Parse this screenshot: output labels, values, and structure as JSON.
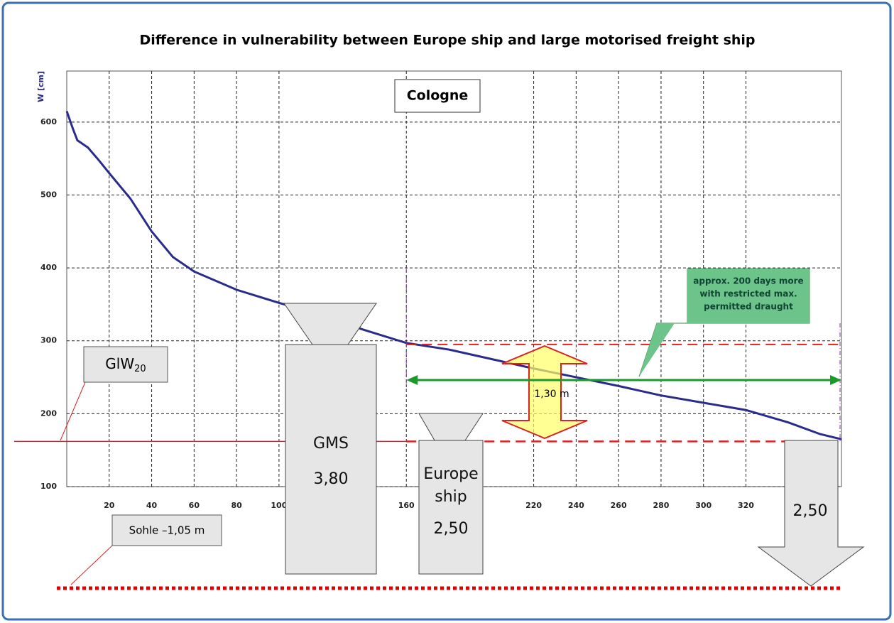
{
  "chart_data": {
    "type": "line",
    "title": "Difference in vulnerability between Europe ship and large motorised freight ship",
    "y_label": "W [cm]",
    "x": [
      0,
      3,
      5,
      10,
      15,
      20,
      30,
      40,
      50,
      60,
      80,
      100,
      120,
      140,
      160,
      180,
      200,
      220,
      240,
      260,
      280,
      300,
      320,
      340,
      355,
      365
    ],
    "series": [
      {
        "color": "#2b2b8c",
        "values": [
          615,
          590,
          575,
          565,
          548,
          530,
          495,
          450,
          415,
          395,
          370,
          352,
          335,
          315,
          297,
          288,
          275,
          262,
          250,
          238,
          225,
          215,
          205,
          188,
          172,
          165
        ]
      }
    ],
    "xlim": [
      0,
      365
    ],
    "ylim": [
      100,
      670
    ],
    "xticks": [
      20,
      40,
      60,
      80,
      100,
      160,
      220,
      240,
      260,
      280,
      300,
      320
    ],
    "yticks": [
      100,
      200,
      300,
      400,
      500,
      600
    ],
    "grid": true,
    "hlines": [
      295,
      162
    ],
    "span_x": [
      160,
      365
    ],
    "annotations": {
      "location": "Cologne",
      "callout": [
        "approx. 200 days more",
        "with restricted max.",
        "permitted draught"
      ],
      "glw": "GlW",
      "glw_sub": "20",
      "difference": "1,30 m",
      "gms": "GMS",
      "gms_draught": "3,80",
      "europe": [
        "Europe",
        "ship"
      ],
      "europe_draught": "2,50",
      "right_draught": "2,50",
      "sohle": "Sohle –1,05 m"
    }
  }
}
